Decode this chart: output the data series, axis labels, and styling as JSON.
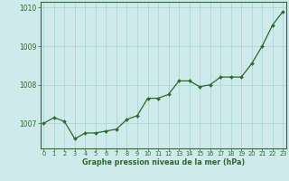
{
  "x": [
    0,
    1,
    2,
    3,
    4,
    5,
    6,
    7,
    8,
    9,
    10,
    11,
    12,
    13,
    14,
    15,
    16,
    17,
    18,
    19,
    20,
    21,
    22,
    23
  ],
  "y": [
    1007.0,
    1007.15,
    1007.05,
    1006.6,
    1006.75,
    1006.75,
    1006.8,
    1006.85,
    1007.1,
    1007.2,
    1007.65,
    1007.65,
    1007.75,
    1008.1,
    1008.1,
    1007.95,
    1008.0,
    1008.2,
    1008.2,
    1008.2,
    1008.55,
    1009.0,
    1009.55,
    1009.9
  ],
  "line_color": "#2d6a2d",
  "marker_color": "#2d6a2d",
  "bg_color": "#ceeaea",
  "grid_color": "#a8d4d4",
  "axis_color": "#2d6a2d",
  "tick_label_color": "#2d6a2d",
  "xlabel": "Graphe pression niveau de la mer (hPa)",
  "xlabel_color": "#2d6a2d",
  "yticks": [
    1007,
    1008,
    1009,
    1010
  ],
  "xticks": [
    0,
    1,
    2,
    3,
    4,
    5,
    6,
    7,
    8,
    9,
    10,
    11,
    12,
    13,
    14,
    15,
    16,
    17,
    18,
    19,
    20,
    21,
    22,
    23
  ],
  "ylim": [
    1006.35,
    1010.15
  ],
  "xlim": [
    -0.3,
    23.3
  ]
}
